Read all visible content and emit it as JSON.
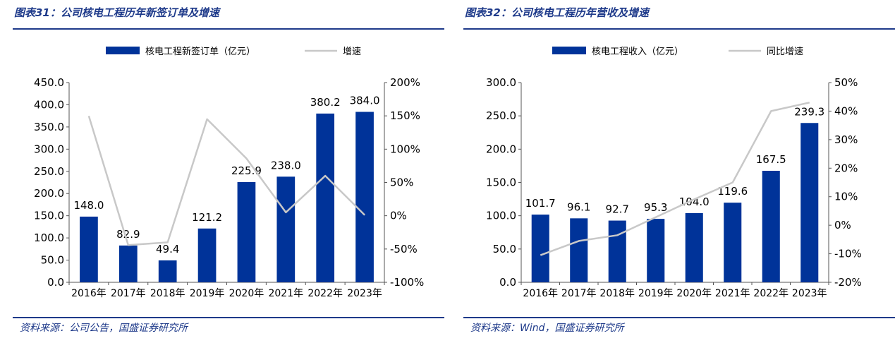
{
  "colors": {
    "bar": "#003399",
    "line": "#c8c8c8",
    "accent": "#1e3a8a"
  },
  "charts": [
    {
      "fig_title": "图表31：公司核电工程历年新签订单及增速",
      "source": "资料来源：公司公告，国盛证券研究所"
    },
    {
      "fig_title": "图表32：公司核电工程历年营收及增速",
      "source": "资料来源：Wind，国盛证券研究所"
    }
  ],
  "chart_data": [
    {
      "type": "bar",
      "categories": [
        "2016年",
        "2017年",
        "2018年",
        "2019年",
        "2020年",
        "2021年",
        "2022年",
        "2023年"
      ],
      "series": [
        {
          "name": "核电工程新签订单（亿元）",
          "type": "bar",
          "axis": "left",
          "values": [
            148.0,
            82.9,
            49.4,
            121.2,
            225.9,
            238.0,
            380.2,
            384.0
          ],
          "data_labels": [
            "148.0",
            "82.9",
            "49.4",
            "121.2",
            "225.9",
            "238.0",
            "380.2",
            "384.0"
          ]
        },
        {
          "name": "增速",
          "type": "line",
          "axis": "right",
          "values": [
            150,
            -44,
            -40,
            145,
            86,
            5,
            60,
            1
          ]
        }
      ],
      "ylim_left": [
        0,
        450
      ],
      "yticks_left": [
        "0.0",
        "50.0",
        "100.0",
        "150.0",
        "200.0",
        "250.0",
        "300.0",
        "350.0",
        "400.0",
        "450.0"
      ],
      "ylim_right": [
        -100,
        200
      ],
      "yticks_right": [
        "-100%",
        "-50%",
        "0%",
        "50%",
        "100%",
        "150%",
        "200%"
      ],
      "legend": "top-center",
      "grid": false
    },
    {
      "type": "bar",
      "categories": [
        "2016年",
        "2017年",
        "2018年",
        "2019年",
        "2020年",
        "2021年",
        "2022年",
        "2023年"
      ],
      "series": [
        {
          "name": "核电工程收入（亿元）",
          "type": "bar",
          "axis": "left",
          "values": [
            101.7,
            96.1,
            92.7,
            95.3,
            104.0,
            119.6,
            167.5,
            239.3
          ],
          "data_labels": [
            "101.7",
            "96.1",
            "92.7",
            "95.3",
            "104.0",
            "119.6",
            "167.5",
            "239.3"
          ]
        },
        {
          "name": "同比增速",
          "type": "line",
          "axis": "right",
          "values": [
            -10.5,
            -5.5,
            -3.5,
            2.8,
            9.1,
            15.0,
            40.0,
            43.0
          ]
        }
      ],
      "ylim_left": [
        0,
        300
      ],
      "yticks_left": [
        "0.0",
        "50.0",
        "100.0",
        "150.0",
        "200.0",
        "250.0",
        "300.0"
      ],
      "ylim_right": [
        -20,
        50
      ],
      "yticks_right": [
        "-20%",
        "-10%",
        "0%",
        "10%",
        "20%",
        "30%",
        "40%",
        "50%"
      ],
      "legend": "top-center",
      "grid": false
    }
  ]
}
